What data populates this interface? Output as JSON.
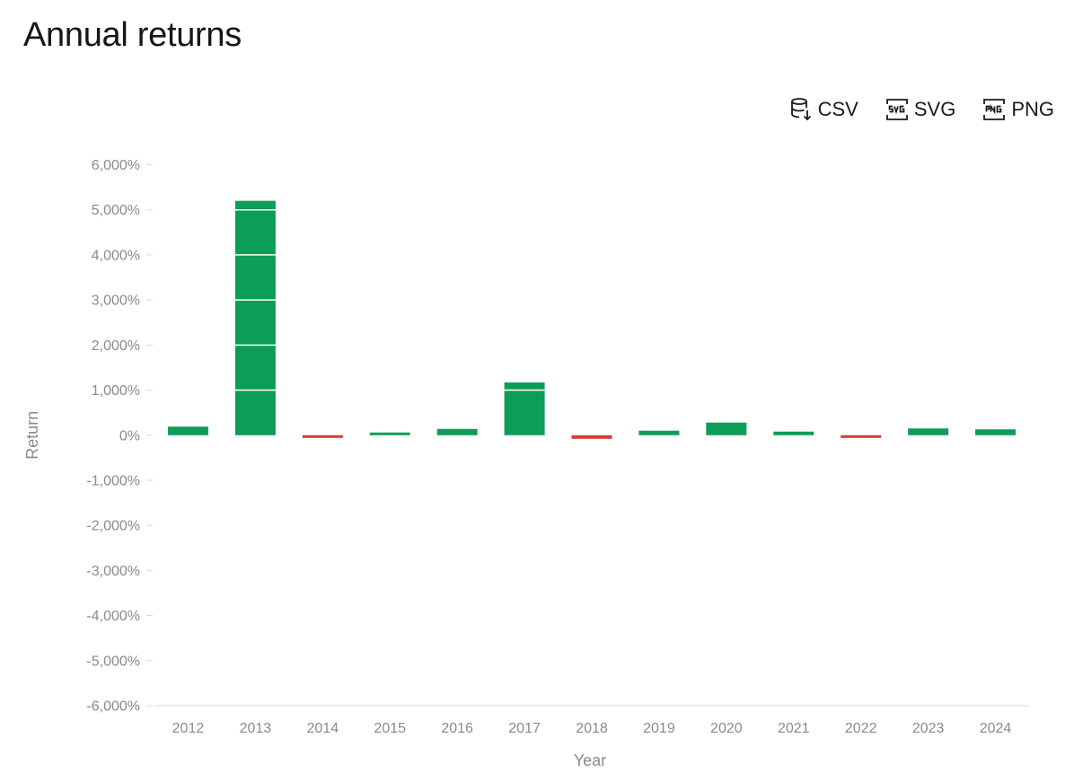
{
  "header": {
    "title": "Annual returns"
  },
  "toolbar": {
    "buttons": [
      {
        "id": "csv",
        "label": "CSV",
        "icon": "database-download-icon"
      },
      {
        "id": "svg",
        "label": "SVG",
        "icon": "svg-file-icon"
      },
      {
        "id": "png",
        "label": "PNG",
        "icon": "png-file-icon"
      }
    ]
  },
  "chart_data": {
    "type": "bar",
    "xlabel": "Year",
    "ylabel": "Return",
    "categories": [
      "2012",
      "2013",
      "2014",
      "2015",
      "2016",
      "2017",
      "2018",
      "2019",
      "2020",
      "2021",
      "2022",
      "2023",
      "2024"
    ],
    "values": [
      190,
      5200,
      -60,
      50,
      140,
      1170,
      -80,
      100,
      280,
      80,
      -60,
      150,
      130
    ],
    "ylim": [
      -6000,
      6000
    ],
    "yticks": [
      6000,
      5000,
      4000,
      3000,
      2000,
      1000,
      0,
      -1000,
      -2000,
      -3000,
      -4000,
      -5000,
      -6000
    ],
    "ytick_labels": [
      "6,000%",
      "5,000%",
      "4,000%",
      "3,000%",
      "2,000%",
      "1,000%",
      "0%",
      "-1,000%",
      "-2,000%",
      "-3,000%",
      "-4,000%",
      "-5,000%",
      "-6,000%"
    ],
    "grid": false,
    "colors": {
      "positive": "#0c9d58",
      "negative": "#d63b33",
      "axis": "#d8d8d8",
      "tick": "#8a8a8a",
      "bar_gridline": "#ffffff"
    }
  }
}
